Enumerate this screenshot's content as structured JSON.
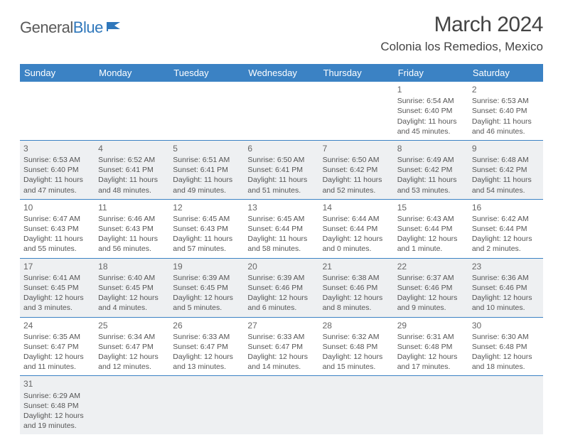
{
  "logo": {
    "part1": "General",
    "part2": "Blue"
  },
  "title": "March 2024",
  "location": "Colonia los Remedios, Mexico",
  "day_headers": [
    "Sunday",
    "Monday",
    "Tuesday",
    "Wednesday",
    "Thursday",
    "Friday",
    "Saturday"
  ],
  "colors": {
    "header_bg": "#3b82c4",
    "header_fg": "#ffffff",
    "alt_row_bg": "#eef0f2",
    "border": "#3b82c4",
    "text": "#555555",
    "title": "#444444"
  },
  "weeks": [
    {
      "alt": false,
      "days": [
        null,
        null,
        null,
        null,
        null,
        {
          "n": "1",
          "sr": "Sunrise: 6:54 AM",
          "ss": "Sunset: 6:40 PM",
          "d1": "Daylight: 11 hours",
          "d2": "and 45 minutes."
        },
        {
          "n": "2",
          "sr": "Sunrise: 6:53 AM",
          "ss": "Sunset: 6:40 PM",
          "d1": "Daylight: 11 hours",
          "d2": "and 46 minutes."
        }
      ]
    },
    {
      "alt": true,
      "days": [
        {
          "n": "3",
          "sr": "Sunrise: 6:53 AM",
          "ss": "Sunset: 6:40 PM",
          "d1": "Daylight: 11 hours",
          "d2": "and 47 minutes."
        },
        {
          "n": "4",
          "sr": "Sunrise: 6:52 AM",
          "ss": "Sunset: 6:41 PM",
          "d1": "Daylight: 11 hours",
          "d2": "and 48 minutes."
        },
        {
          "n": "5",
          "sr": "Sunrise: 6:51 AM",
          "ss": "Sunset: 6:41 PM",
          "d1": "Daylight: 11 hours",
          "d2": "and 49 minutes."
        },
        {
          "n": "6",
          "sr": "Sunrise: 6:50 AM",
          "ss": "Sunset: 6:41 PM",
          "d1": "Daylight: 11 hours",
          "d2": "and 51 minutes."
        },
        {
          "n": "7",
          "sr": "Sunrise: 6:50 AM",
          "ss": "Sunset: 6:42 PM",
          "d1": "Daylight: 11 hours",
          "d2": "and 52 minutes."
        },
        {
          "n": "8",
          "sr": "Sunrise: 6:49 AM",
          "ss": "Sunset: 6:42 PM",
          "d1": "Daylight: 11 hours",
          "d2": "and 53 minutes."
        },
        {
          "n": "9",
          "sr": "Sunrise: 6:48 AM",
          "ss": "Sunset: 6:42 PM",
          "d1": "Daylight: 11 hours",
          "d2": "and 54 minutes."
        }
      ]
    },
    {
      "alt": false,
      "days": [
        {
          "n": "10",
          "sr": "Sunrise: 6:47 AM",
          "ss": "Sunset: 6:43 PM",
          "d1": "Daylight: 11 hours",
          "d2": "and 55 minutes."
        },
        {
          "n": "11",
          "sr": "Sunrise: 6:46 AM",
          "ss": "Sunset: 6:43 PM",
          "d1": "Daylight: 11 hours",
          "d2": "and 56 minutes."
        },
        {
          "n": "12",
          "sr": "Sunrise: 6:45 AM",
          "ss": "Sunset: 6:43 PM",
          "d1": "Daylight: 11 hours",
          "d2": "and 57 minutes."
        },
        {
          "n": "13",
          "sr": "Sunrise: 6:45 AM",
          "ss": "Sunset: 6:44 PM",
          "d1": "Daylight: 11 hours",
          "d2": "and 58 minutes."
        },
        {
          "n": "14",
          "sr": "Sunrise: 6:44 AM",
          "ss": "Sunset: 6:44 PM",
          "d1": "Daylight: 12 hours",
          "d2": "and 0 minutes."
        },
        {
          "n": "15",
          "sr": "Sunrise: 6:43 AM",
          "ss": "Sunset: 6:44 PM",
          "d1": "Daylight: 12 hours",
          "d2": "and 1 minute."
        },
        {
          "n": "16",
          "sr": "Sunrise: 6:42 AM",
          "ss": "Sunset: 6:44 PM",
          "d1": "Daylight: 12 hours",
          "d2": "and 2 minutes."
        }
      ]
    },
    {
      "alt": true,
      "days": [
        {
          "n": "17",
          "sr": "Sunrise: 6:41 AM",
          "ss": "Sunset: 6:45 PM",
          "d1": "Daylight: 12 hours",
          "d2": "and 3 minutes."
        },
        {
          "n": "18",
          "sr": "Sunrise: 6:40 AM",
          "ss": "Sunset: 6:45 PM",
          "d1": "Daylight: 12 hours",
          "d2": "and 4 minutes."
        },
        {
          "n": "19",
          "sr": "Sunrise: 6:39 AM",
          "ss": "Sunset: 6:45 PM",
          "d1": "Daylight: 12 hours",
          "d2": "and 5 minutes."
        },
        {
          "n": "20",
          "sr": "Sunrise: 6:39 AM",
          "ss": "Sunset: 6:46 PM",
          "d1": "Daylight: 12 hours",
          "d2": "and 6 minutes."
        },
        {
          "n": "21",
          "sr": "Sunrise: 6:38 AM",
          "ss": "Sunset: 6:46 PM",
          "d1": "Daylight: 12 hours",
          "d2": "and 8 minutes."
        },
        {
          "n": "22",
          "sr": "Sunrise: 6:37 AM",
          "ss": "Sunset: 6:46 PM",
          "d1": "Daylight: 12 hours",
          "d2": "and 9 minutes."
        },
        {
          "n": "23",
          "sr": "Sunrise: 6:36 AM",
          "ss": "Sunset: 6:46 PM",
          "d1": "Daylight: 12 hours",
          "d2": "and 10 minutes."
        }
      ]
    },
    {
      "alt": false,
      "days": [
        {
          "n": "24",
          "sr": "Sunrise: 6:35 AM",
          "ss": "Sunset: 6:47 PM",
          "d1": "Daylight: 12 hours",
          "d2": "and 11 minutes."
        },
        {
          "n": "25",
          "sr": "Sunrise: 6:34 AM",
          "ss": "Sunset: 6:47 PM",
          "d1": "Daylight: 12 hours",
          "d2": "and 12 minutes."
        },
        {
          "n": "26",
          "sr": "Sunrise: 6:33 AM",
          "ss": "Sunset: 6:47 PM",
          "d1": "Daylight: 12 hours",
          "d2": "and 13 minutes."
        },
        {
          "n": "27",
          "sr": "Sunrise: 6:33 AM",
          "ss": "Sunset: 6:47 PM",
          "d1": "Daylight: 12 hours",
          "d2": "and 14 minutes."
        },
        {
          "n": "28",
          "sr": "Sunrise: 6:32 AM",
          "ss": "Sunset: 6:48 PM",
          "d1": "Daylight: 12 hours",
          "d2": "and 15 minutes."
        },
        {
          "n": "29",
          "sr": "Sunrise: 6:31 AM",
          "ss": "Sunset: 6:48 PM",
          "d1": "Daylight: 12 hours",
          "d2": "and 17 minutes."
        },
        {
          "n": "30",
          "sr": "Sunrise: 6:30 AM",
          "ss": "Sunset: 6:48 PM",
          "d1": "Daylight: 12 hours",
          "d2": "and 18 minutes."
        }
      ]
    },
    {
      "alt": true,
      "last": true,
      "days": [
        {
          "n": "31",
          "sr": "Sunrise: 6:29 AM",
          "ss": "Sunset: 6:48 PM",
          "d1": "Daylight: 12 hours",
          "d2": "and 19 minutes."
        },
        null,
        null,
        null,
        null,
        null,
        null
      ]
    }
  ]
}
